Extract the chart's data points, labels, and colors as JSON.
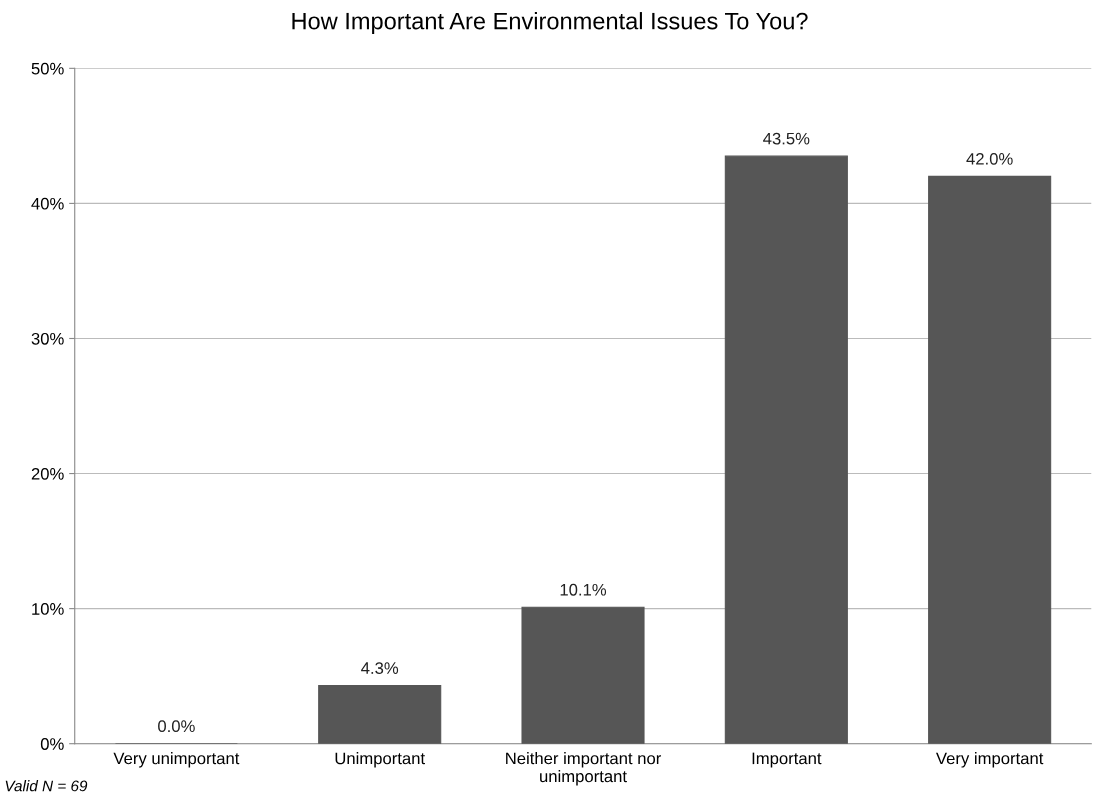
{
  "chart_data": {
    "type": "bar",
    "title": "How Important Are Environmental Issues To You?",
    "categories": [
      "Very unimportant",
      "Unimportant",
      "Neither important nor\nunimportant",
      "Important",
      "Very important"
    ],
    "values": [
      0.0,
      4.3,
      10.1,
      43.5,
      42.0
    ],
    "value_labels": [
      "0.0%",
      "4.3%",
      "10.1%",
      "43.5%",
      "42.0%"
    ],
    "color": "#565656",
    "ylim": [
      0,
      50
    ],
    "yticks": [
      {
        "value": 0,
        "label": "0%"
      },
      {
        "value": 10,
        "label": "10%"
      },
      {
        "value": 20,
        "label": "20%"
      },
      {
        "value": 30,
        "label": "30%"
      },
      {
        "value": 40,
        "label": "40%"
      },
      {
        "value": 50,
        "label": "50%"
      }
    ],
    "grid": "y",
    "annotations": [
      "Valid N = 69"
    ]
  }
}
